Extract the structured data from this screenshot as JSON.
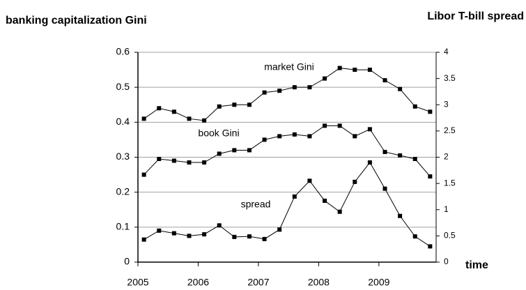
{
  "chart_data": {
    "type": "line",
    "title": "banking capitalization Gini",
    "y2_title": "Libor T-bill spread",
    "xlabel": "time",
    "x": [
      2005.1,
      2005.35,
      2005.6,
      2005.85,
      2006.1,
      2006.35,
      2006.6,
      2006.85,
      2007.1,
      2007.35,
      2007.6,
      2007.85,
      2008.1,
      2008.35,
      2008.6,
      2008.85,
      2009.1,
      2009.35,
      2009.6,
      2009.85
    ],
    "series": [
      {
        "name": "market Gini",
        "color": "#000000",
        "values": [
          0.41,
          0.44,
          0.43,
          0.41,
          0.405,
          0.445,
          0.45,
          0.45,
          0.485,
          0.49,
          0.5,
          0.5,
          0.525,
          0.555,
          0.55,
          0.55,
          0.52,
          0.495,
          0.445,
          0.43
        ]
      },
      {
        "name": "book Gini",
        "color": "#000000",
        "values": [
          0.25,
          0.295,
          0.29,
          0.285,
          0.285,
          0.31,
          0.32,
          0.32,
          0.35,
          0.36,
          0.365,
          0.36,
          0.39,
          0.39,
          0.36,
          0.38,
          0.315,
          0.305,
          0.295,
          0.245
        ]
      },
      {
        "name": "spread",
        "color": "#000000",
        "axis": "y2",
        "values": [
          0.43,
          0.6,
          0.55,
          0.5,
          0.53,
          0.7,
          0.48,
          0.49,
          0.44,
          0.62,
          1.25,
          1.55,
          1.17,
          0.96,
          1.53,
          1.9,
          1.4,
          0.88,
          0.49,
          0.3
        ]
      }
    ],
    "xlim": [
      2005,
      2009.95
    ],
    "xticks": [
      2005,
      2006,
      2007,
      2008,
      2009
    ],
    "ylim": [
      0,
      0.6
    ],
    "yticks": [
      0,
      0.1,
      0.2,
      0.3,
      0.4,
      0.5,
      0.6
    ],
    "y2lim": [
      0,
      4
    ],
    "y2ticks": [
      0,
      0.5,
      1,
      1.5,
      2,
      2.5,
      3,
      3.5,
      4
    ],
    "grid": true
  }
}
